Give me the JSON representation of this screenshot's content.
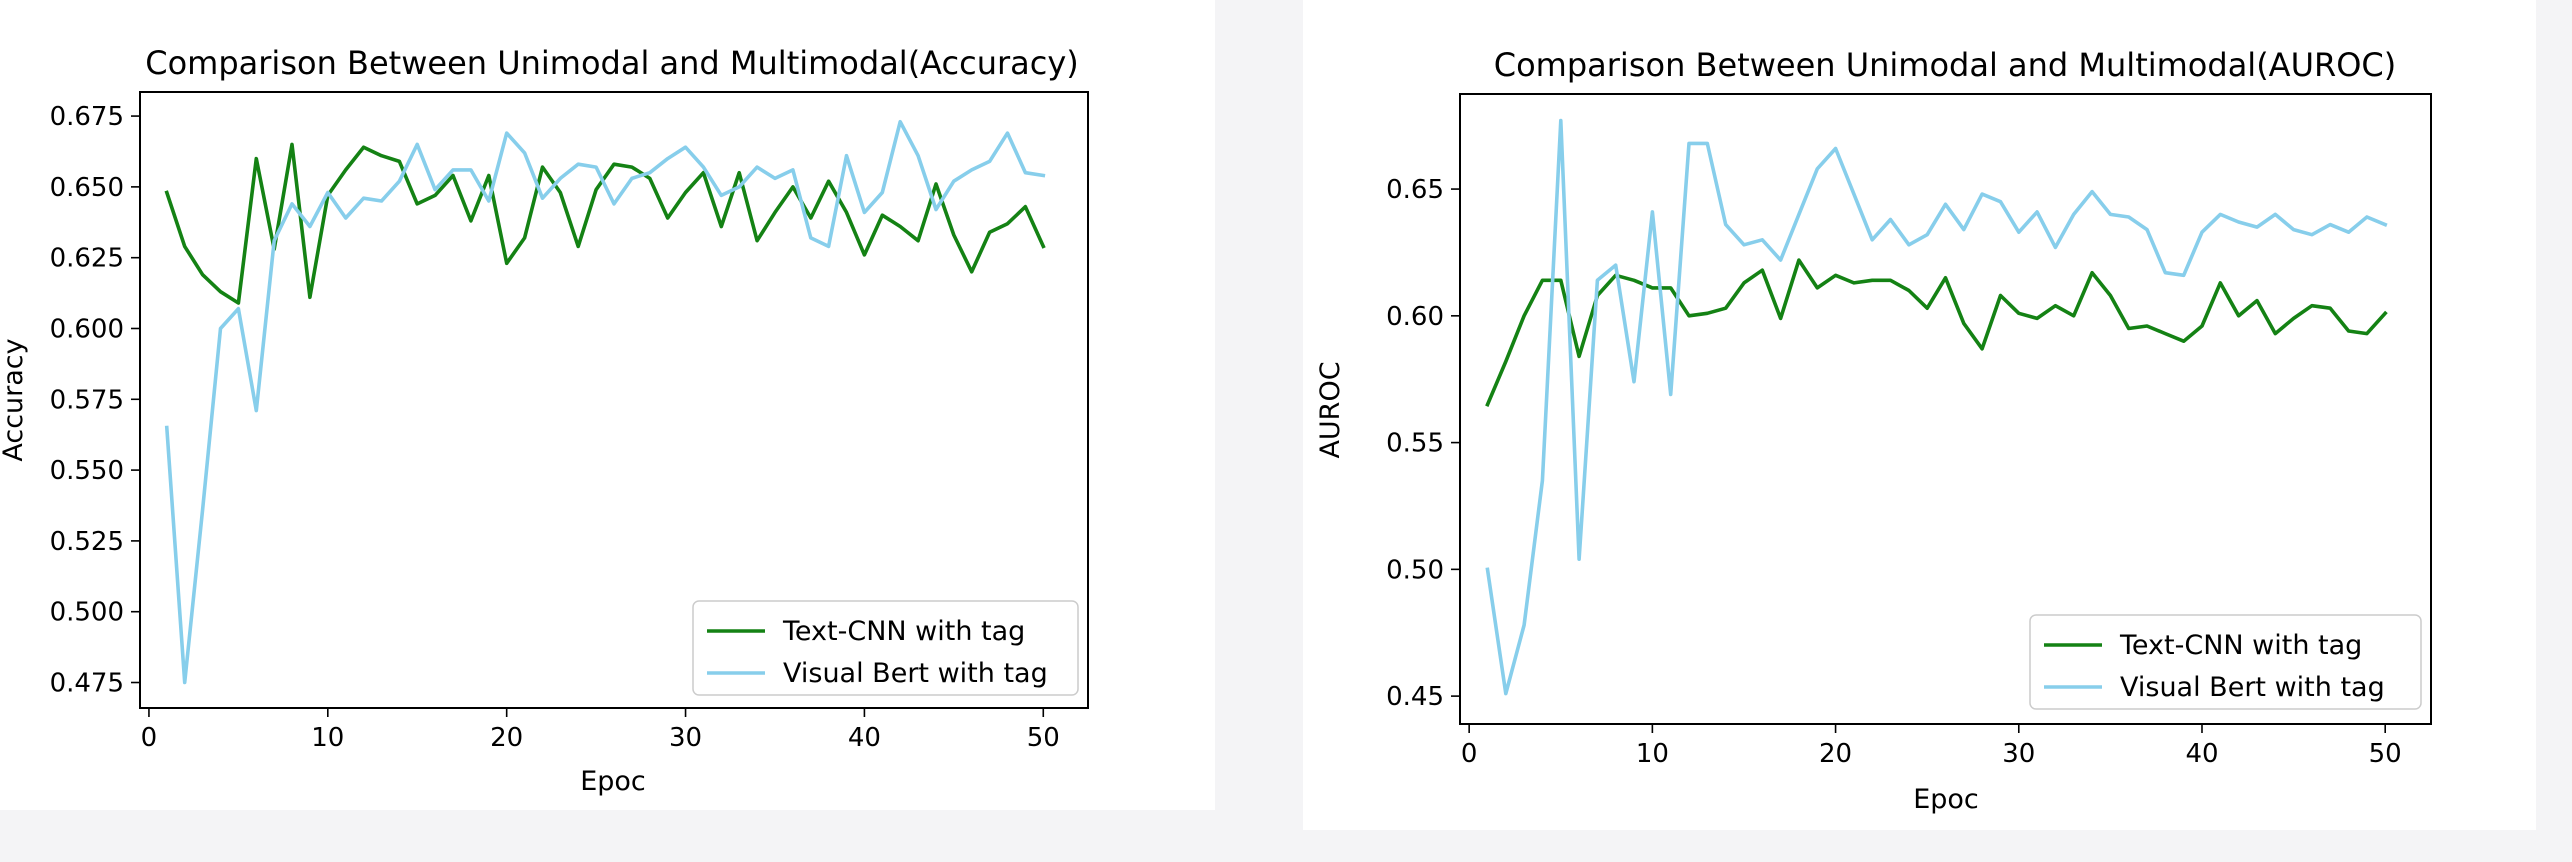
{
  "chart_data": [
    {
      "type": "line",
      "title": "Comparison Between Unimodal and Multimodal(Accuracy)",
      "xlabel": "Epoc",
      "ylabel": "Accuracy",
      "xlim": [
        -0.5,
        52.5
      ],
      "ylim": [
        0.466,
        0.6835
      ],
      "xticks": [
        0,
        10,
        20,
        30,
        40,
        50
      ],
      "yticks": [
        0.475,
        0.5,
        0.525,
        0.55,
        0.575,
        0.6,
        0.625,
        0.65,
        0.675
      ],
      "ytick_format": 3,
      "legend_loc": "lower-right",
      "grid": false,
      "x": [
        1,
        2,
        3,
        4,
        5,
        6,
        7,
        8,
        9,
        10,
        11,
        12,
        13,
        14,
        15,
        16,
        17,
        18,
        19,
        20,
        21,
        22,
        23,
        24,
        25,
        26,
        27,
        28,
        29,
        30,
        31,
        32,
        33,
        34,
        35,
        36,
        37,
        38,
        39,
        40,
        41,
        42,
        43,
        44,
        45,
        46,
        47,
        48,
        49,
        50
      ],
      "series": [
        {
          "name": "Text-CNN with tag",
          "color": "#148214",
          "values": [
            0.648,
            0.629,
            0.619,
            0.613,
            0.609,
            0.66,
            0.628,
            0.665,
            0.611,
            0.647,
            0.656,
            0.664,
            0.661,
            0.659,
            0.644,
            0.647,
            0.654,
            0.638,
            0.654,
            0.623,
            0.632,
            0.657,
            0.648,
            0.629,
            0.649,
            0.658,
            0.657,
            0.653,
            0.639,
            0.648,
            0.655,
            0.636,
            0.655,
            0.631,
            0.641,
            0.65,
            0.639,
            0.652,
            0.641,
            0.626,
            0.64,
            0.636,
            0.631,
            0.651,
            0.633,
            0.62,
            0.634,
            0.637,
            0.643,
            0.629
          ]
        },
        {
          "name": "Visual Bert with tag",
          "color": "#87ceeb",
          "values": [
            0.565,
            0.475,
            0.536,
            0.6,
            0.607,
            0.571,
            0.631,
            0.644,
            0.636,
            0.648,
            0.639,
            0.646,
            0.645,
            0.652,
            0.665,
            0.649,
            0.656,
            0.656,
            0.645,
            0.669,
            0.662,
            0.646,
            0.653,
            0.658,
            0.657,
            0.644,
            0.653,
            0.655,
            0.66,
            0.664,
            0.657,
            0.647,
            0.65,
            0.657,
            0.653,
            0.656,
            0.632,
            0.629,
            0.661,
            0.641,
            0.648,
            0.673,
            0.661,
            0.642,
            0.652,
            0.656,
            0.659,
            0.669,
            0.655,
            0.654
          ]
        }
      ]
    },
    {
      "type": "line",
      "title": "Comparison Between Unimodal and Multimodal(AUROC)",
      "xlabel": "Epoc",
      "ylabel": "AUROC",
      "xlim": [
        -0.5,
        52.5
      ],
      "ylim": [
        0.439,
        0.6875
      ],
      "xticks": [
        0,
        10,
        20,
        30,
        40,
        50
      ],
      "yticks": [
        0.45,
        0.5,
        0.55,
        0.6,
        0.65
      ],
      "ytick_format": 2,
      "legend_loc": "lower-right",
      "grid": false,
      "x": [
        1,
        2,
        3,
        4,
        5,
        6,
        7,
        8,
        9,
        10,
        11,
        12,
        13,
        14,
        15,
        16,
        17,
        18,
        19,
        20,
        21,
        22,
        23,
        24,
        25,
        26,
        27,
        28,
        29,
        30,
        31,
        32,
        33,
        34,
        35,
        36,
        37,
        38,
        39,
        40,
        41,
        42,
        43,
        44,
        45,
        46,
        47,
        48,
        49,
        50
      ],
      "series": [
        {
          "name": "Text-CNN with tag",
          "color": "#148214",
          "values": [
            0.565,
            0.582,
            0.6,
            0.614,
            0.614,
            0.584,
            0.608,
            0.616,
            0.614,
            0.611,
            0.611,
            0.6,
            0.601,
            0.603,
            0.613,
            0.618,
            0.599,
            0.622,
            0.611,
            0.616,
            0.613,
            0.614,
            0.614,
            0.61,
            0.603,
            0.615,
            0.597,
            0.587,
            0.608,
            0.601,
            0.599,
            0.604,
            0.6,
            0.617,
            0.608,
            0.595,
            0.596,
            0.593,
            0.59,
            0.596,
            0.613,
            0.6,
            0.606,
            0.593,
            0.599,
            0.604,
            0.603,
            0.594,
            0.593,
            0.601
          ]
        },
        {
          "name": "Visual Bert with tag",
          "color": "#87ceeb",
          "values": [
            0.5,
            0.451,
            0.478,
            0.535,
            0.677,
            0.504,
            0.614,
            0.62,
            0.574,
            0.641,
            0.569,
            0.668,
            0.668,
            0.636,
            0.628,
            0.63,
            0.622,
            0.64,
            0.658,
            0.666,
            0.648,
            0.63,
            0.638,
            0.628,
            0.632,
            0.644,
            0.634,
            0.648,
            0.645,
            0.633,
            0.641,
            0.627,
            0.64,
            0.649,
            0.64,
            0.639,
            0.634,
            0.617,
            0.616,
            0.633,
            0.64,
            0.637,
            0.635,
            0.64,
            0.634,
            0.632,
            0.636,
            0.633,
            0.639,
            0.636
          ]
        }
      ]
    }
  ]
}
